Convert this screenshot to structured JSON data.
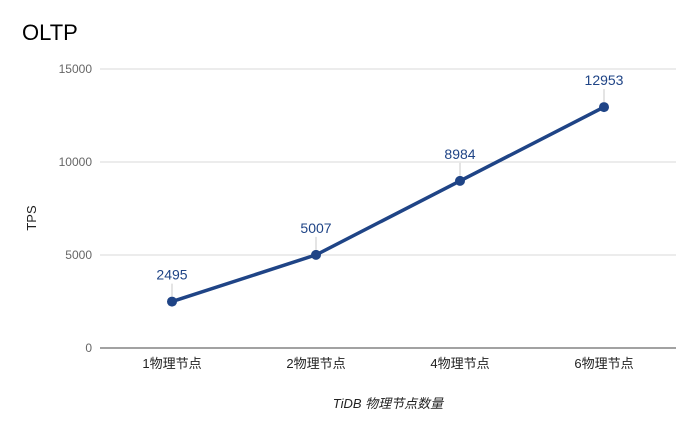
{
  "chart_data": {
    "type": "line",
    "title": "OLTP",
    "xlabel": "TiDB 物理节点数量",
    "ylabel": "TPS",
    "categories": [
      "1物理节点",
      "2物理节点",
      "4物理节点",
      "6物理节点"
    ],
    "series": [
      {
        "values": [
          2495,
          5007,
          8984,
          12953
        ],
        "color": "#1f4486"
      }
    ],
    "ylim": [
      0,
      15000
    ],
    "yticks": [
      0,
      5000,
      10000,
      15000
    ],
    "grid": true,
    "data_labels": true
  }
}
